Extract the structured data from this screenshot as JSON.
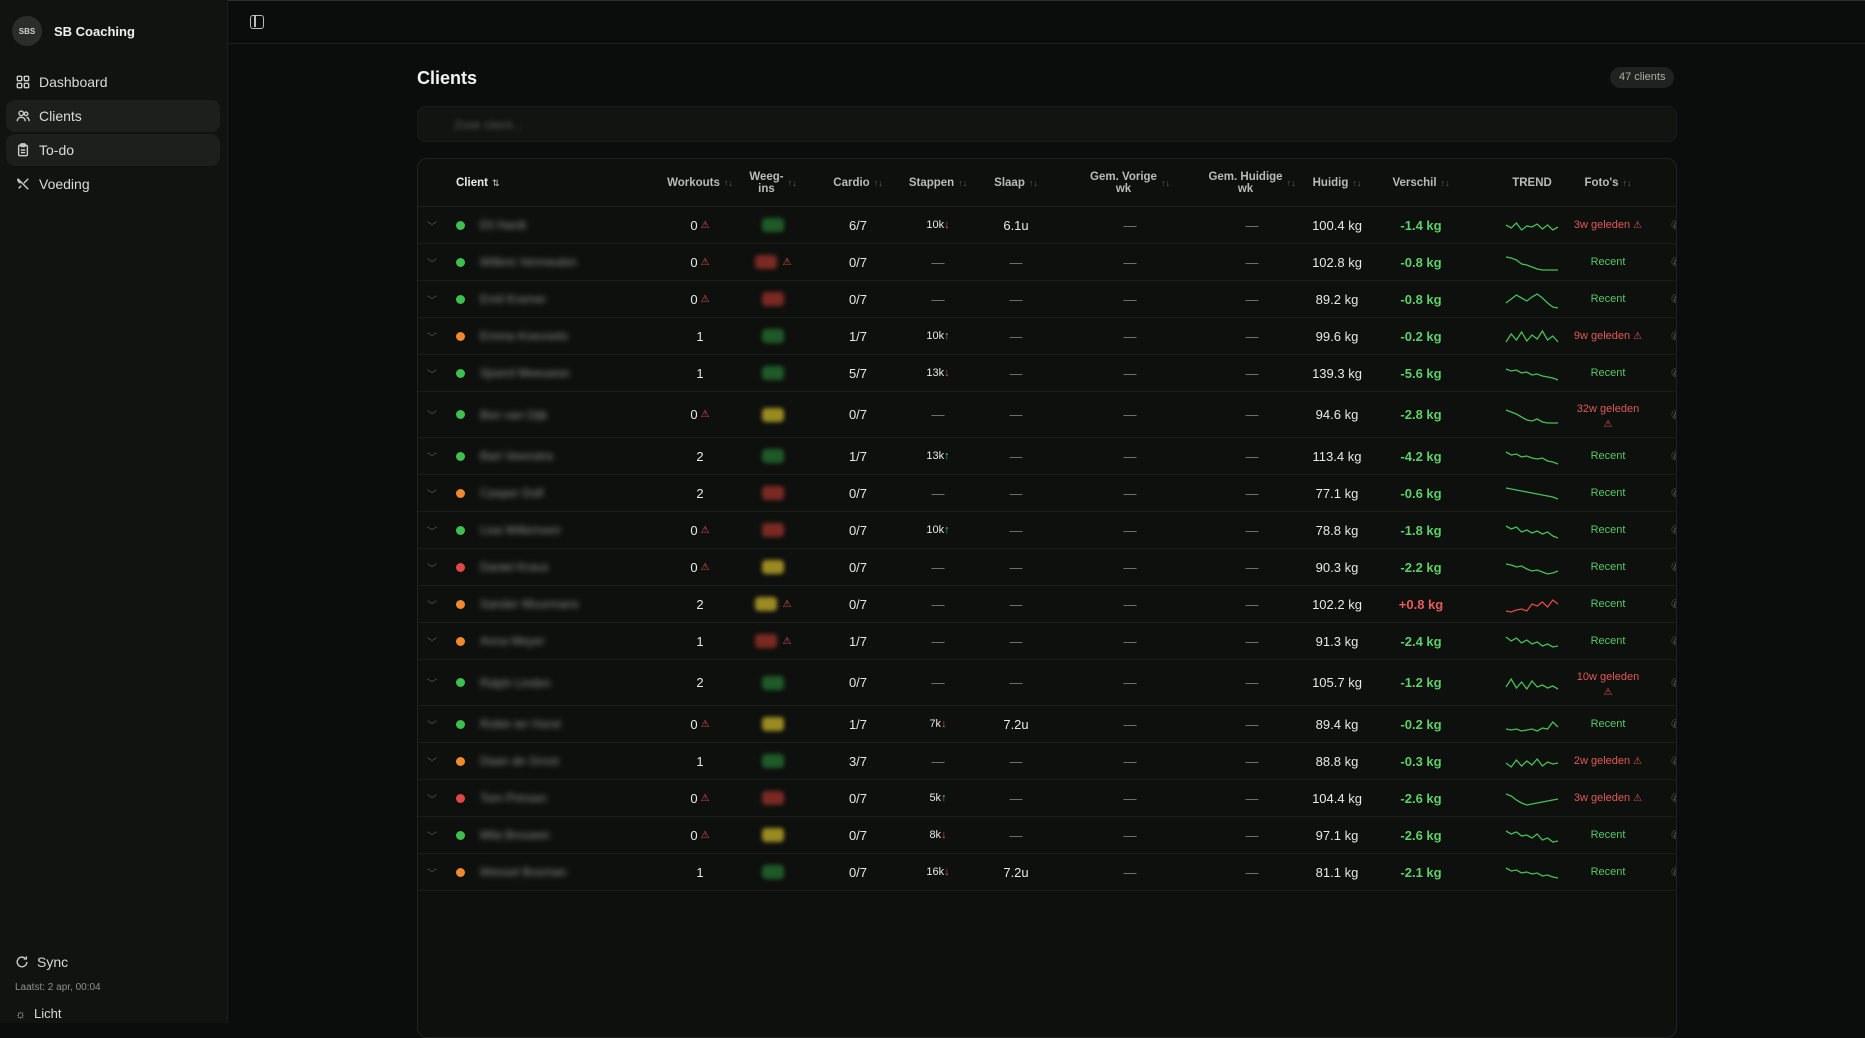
{
  "brand": {
    "logo_text": "SBS",
    "name": "SB Coaching"
  },
  "nav": [
    {
      "label": "Dashboard",
      "icon": "dashboard-icon"
    },
    {
      "label": "Clients",
      "icon": "users-icon"
    },
    {
      "label": "To-do",
      "icon": "clipboard-icon"
    },
    {
      "label": "Voeding",
      "icon": "utensils-icon"
    }
  ],
  "sync": {
    "label": "Sync",
    "last": "Laatst: 2 apr, 00:04"
  },
  "theme": {
    "label": "Licht"
  },
  "page": {
    "title": "Clients",
    "count": "47 clients",
    "search_placeholder": "Zoek client..."
  },
  "columns": {
    "client": "Client",
    "workouts": "Workouts",
    "weegins": "Weeg-\nins",
    "cardio": "Cardio",
    "stappen": "Stappen",
    "slaap": "Slaap",
    "gem_vorige": "Gem. Vorige\nwk",
    "gem_huidige": "Gem. Huidige\nwk",
    "huidig": "Huidig",
    "verschil": "Verschil",
    "trend": "TREND",
    "fotos": "Foto's"
  },
  "colors": {
    "green": "#3fbf4f",
    "orange": "#f08a2c",
    "red": "#e04848",
    "yellow": "#9a8a22",
    "wred": "#7a2a22",
    "wgreen": "#1f5a28"
  },
  "rows": [
    {
      "status": "green",
      "name": "Eli Hardt",
      "workouts": "0",
      "w_warn": true,
      "weeg": "green",
      "weeg_warn": false,
      "cardio": "6/7",
      "steps": "10k",
      "steps_dir": "down",
      "sleep": "6.1u",
      "vorige": "—",
      "huidige": "—",
      "huidig": "100.4 kg",
      "verschil": "-1.4 kg",
      "vs_dir": "neg",
      "trend": [
        10,
        13,
        8,
        15,
        11,
        12,
        9,
        14,
        10,
        15,
        12
      ],
      "trend_color": "green",
      "foto": "3w geleden",
      "foto_warn": true
    },
    {
      "status": "green",
      "name": "Willem Vermeulen",
      "workouts": "0",
      "w_warn": true,
      "weeg": "red",
      "weeg_warn": true,
      "cardio": "0/7",
      "steps": "—",
      "steps_dir": "",
      "sleep": "—",
      "vorige": "—",
      "huidige": "—",
      "huidig": "102.8 kg",
      "verschil": "-0.8 kg",
      "vs_dir": "neg",
      "trend": [
        5,
        6,
        8,
        12,
        13,
        15,
        17,
        18,
        18,
        18,
        18
      ],
      "trend_color": "green",
      "foto": "Recent",
      "foto_warn": false
    },
    {
      "status": "green",
      "name": "Emil Kramer",
      "workouts": "0",
      "w_warn": true,
      "weeg": "red",
      "weeg_warn": false,
      "cardio": "0/7",
      "steps": "—",
      "steps_dir": "",
      "sleep": "—",
      "vorige": "—",
      "huidige": "—",
      "huidig": "89.2 kg",
      "verschil": "-0.8 kg",
      "vs_dir": "neg",
      "trend": [
        14,
        10,
        6,
        9,
        12,
        8,
        5,
        9,
        14,
        18,
        19
      ],
      "trend_color": "green",
      "foto": "Recent",
      "foto_warn": false
    },
    {
      "status": "orange",
      "name": "Emma Koevoets",
      "workouts": "1",
      "w_warn": false,
      "weeg": "green",
      "weeg_warn": false,
      "cardio": "1/7",
      "steps": "10k",
      "steps_dir": "up",
      "sleep": "—",
      "vorige": "—",
      "huidige": "—",
      "huidig": "99.6 kg",
      "verschil": "-0.2 kg",
      "vs_dir": "neg",
      "trend": [
        16,
        8,
        14,
        6,
        15,
        9,
        13,
        5,
        14,
        10,
        16
      ],
      "trend_color": "green",
      "foto": "9w geleden",
      "foto_warn": true
    },
    {
      "status": "green",
      "name": "Sjoerd Meeuwse",
      "workouts": "1",
      "w_warn": false,
      "weeg": "green",
      "weeg_warn": false,
      "cardio": "5/7",
      "steps": "13k",
      "steps_dir": "down",
      "sleep": "—",
      "vorige": "—",
      "huidige": "—",
      "huidig": "139.3 kg",
      "verschil": "-5.6 kg",
      "vs_dir": "neg",
      "trend": [
        6,
        8,
        7,
        10,
        9,
        12,
        11,
        13,
        14,
        15,
        17
      ],
      "trend_color": "green",
      "foto": "Recent",
      "foto_warn": false
    },
    {
      "status": "green",
      "name": "Ben van Dijk",
      "workouts": "0",
      "w_warn": true,
      "weeg": "yellow",
      "weeg_warn": false,
      "cardio": "0/7",
      "steps": "—",
      "steps_dir": "",
      "sleep": "—",
      "vorige": "—",
      "huidige": "—",
      "huidig": "94.6 kg",
      "verschil": "-2.8 kg",
      "vs_dir": "neg",
      "trend": [
        5,
        7,
        9,
        12,
        15,
        16,
        14,
        17,
        18,
        18,
        18
      ],
      "trend_color": "green",
      "foto": "32w geleden",
      "foto_warn": true
    },
    {
      "status": "green",
      "name": "Bart Veenstra",
      "workouts": "2",
      "w_warn": false,
      "weeg": "green",
      "weeg_warn": false,
      "cardio": "1/7",
      "steps": "13k",
      "steps_dir": "up",
      "sleep": "—",
      "vorige": "—",
      "huidige": "—",
      "huidig": "113.4 kg",
      "verschil": "-4.2 kg",
      "vs_dir": "neg",
      "trend": [
        6,
        9,
        8,
        11,
        10,
        12,
        13,
        12,
        15,
        16,
        18
      ],
      "trend_color": "green",
      "foto": "Recent",
      "foto_warn": false
    },
    {
      "status": "orange",
      "name": "Casper Dolf",
      "workouts": "2",
      "w_warn": false,
      "weeg": "red",
      "weeg_warn": false,
      "cardio": "0/7",
      "steps": "—",
      "steps_dir": "",
      "sleep": "—",
      "vorige": "—",
      "huidige": "—",
      "huidig": "77.1 kg",
      "verschil": "-0.6 kg",
      "vs_dir": "neg",
      "trend": [
        5,
        6,
        7,
        8,
        9,
        10,
        11,
        12,
        13,
        14,
        16
      ],
      "trend_color": "green",
      "foto": "Recent",
      "foto_warn": false
    },
    {
      "status": "green",
      "name": "Lisa Willemsen",
      "workouts": "0",
      "w_warn": true,
      "weeg": "red",
      "weeg_warn": false,
      "cardio": "0/7",
      "steps": "10k",
      "steps_dir": "up",
      "sleep": "—",
      "vorige": "—",
      "huidige": "—",
      "huidig": "78.8 kg",
      "verschil": "-1.8 kg",
      "vs_dir": "neg",
      "trend": [
        6,
        9,
        7,
        12,
        10,
        13,
        11,
        14,
        12,
        16,
        18
      ],
      "trend_color": "green",
      "foto": "Recent",
      "foto_warn": false
    },
    {
      "status": "red",
      "name": "Daniel Kraus",
      "workouts": "0",
      "w_warn": true,
      "weeg": "yellow",
      "weeg_warn": false,
      "cardio": "0/7",
      "steps": "—",
      "steps_dir": "",
      "sleep": "—",
      "vorige": "—",
      "huidige": "—",
      "huidig": "90.3 kg",
      "verschil": "-2.2 kg",
      "vs_dir": "neg",
      "trend": [
        7,
        8,
        10,
        9,
        12,
        14,
        13,
        15,
        17,
        16,
        14
      ],
      "trend_color": "green",
      "foto": "Recent",
      "foto_warn": false
    },
    {
      "status": "orange",
      "name": "Sander Mourmans",
      "workouts": "2",
      "w_warn": false,
      "weeg": "yellow",
      "weeg_warn": true,
      "cardio": "0/7",
      "steps": "—",
      "steps_dir": "",
      "sleep": "—",
      "vorige": "—",
      "huidige": "—",
      "huidig": "102.2 kg",
      "verschil": "+0.8 kg",
      "vs_dir": "pos",
      "trend": [
        17,
        18,
        16,
        15,
        17,
        10,
        12,
        8,
        13,
        6,
        10
      ],
      "trend_color": "red",
      "foto": "Recent",
      "foto_warn": false
    },
    {
      "status": "orange",
      "name": "Anna Meyer",
      "workouts": "1",
      "w_warn": false,
      "weeg": "red",
      "weeg_warn": true,
      "cardio": "1/7",
      "steps": "—",
      "steps_dir": "",
      "sleep": "—",
      "vorige": "—",
      "huidige": "—",
      "huidig": "91.3 kg",
      "verschil": "-2.4 kg",
      "vs_dir": "neg",
      "trend": [
        6,
        10,
        7,
        12,
        9,
        13,
        11,
        15,
        13,
        16,
        15
      ],
      "trend_color": "green",
      "foto": "Recent",
      "foto_warn": false
    },
    {
      "status": "green",
      "name": "Ralph Linden",
      "workouts": "2",
      "w_warn": false,
      "weeg": "green",
      "weeg_warn": false,
      "cardio": "0/7",
      "steps": "—",
      "steps_dir": "",
      "sleep": "—",
      "vorige": "—",
      "huidige": "—",
      "huidig": "105.7 kg",
      "verschil": "-1.2 kg",
      "vs_dir": "neg",
      "trend": [
        14,
        6,
        15,
        9,
        16,
        8,
        14,
        12,
        15,
        13,
        16
      ],
      "trend_color": "green",
      "foto": "10w geleden",
      "foto_warn": true
    },
    {
      "status": "green",
      "name": "Robin ter Horst",
      "workouts": "0",
      "w_warn": true,
      "weeg": "yellow",
      "weeg_warn": false,
      "cardio": "1/7",
      "steps": "7k",
      "steps_dir": "down",
      "sleep": "7.2u",
      "vorige": "—",
      "huidige": "—",
      "huidig": "89.4 kg",
      "verschil": "-0.2 kg",
      "vs_dir": "neg",
      "trend": [
        15,
        16,
        15,
        17,
        16,
        15,
        17,
        14,
        15,
        8,
        13
      ],
      "trend_color": "green",
      "foto": "Recent",
      "foto_warn": false
    },
    {
      "status": "orange",
      "name": "Daan de Groot",
      "workouts": "1",
      "w_warn": false,
      "weeg": "green",
      "weeg_warn": false,
      "cardio": "3/7",
      "steps": "—",
      "steps_dir": "",
      "sleep": "—",
      "vorige": "—",
      "huidige": "—",
      "huidig": "88.8 kg",
      "verschil": "-0.3 kg",
      "vs_dir": "neg",
      "trend": [
        12,
        16,
        9,
        15,
        10,
        14,
        8,
        15,
        11,
        13,
        12
      ],
      "trend_color": "green",
      "foto": "2w geleden",
      "foto_warn": true
    },
    {
      "status": "red",
      "name": "Tom Prinsen",
      "workouts": "0",
      "w_warn": true,
      "weeg": "red",
      "weeg_warn": false,
      "cardio": "0/7",
      "steps": "5k",
      "steps_dir": "up",
      "sleep": "—",
      "vorige": "—",
      "huidige": "—",
      "huidig": "104.4 kg",
      "verschil": "-2.6 kg",
      "vs_dir": "neg",
      "trend": [
        6,
        8,
        12,
        15,
        17,
        16,
        15,
        14,
        13,
        12,
        11
      ],
      "trend_color": "green",
      "foto": "3w geleden",
      "foto_warn": true
    },
    {
      "status": "green",
      "name": "Mila Brouwer",
      "workouts": "0",
      "w_warn": true,
      "weeg": "yellow",
      "weeg_warn": false,
      "cardio": "0/7",
      "steps": "8k",
      "steps_dir": "down",
      "sleep": "—",
      "vorige": "—",
      "huidige": "—",
      "huidig": "97.1 kg",
      "verschil": "-2.6 kg",
      "vs_dir": "neg",
      "trend": [
        6,
        9,
        7,
        11,
        10,
        13,
        9,
        15,
        13,
        17,
        16
      ],
      "trend_color": "green",
      "foto": "Recent",
      "foto_warn": false
    },
    {
      "status": "orange",
      "name": "Wessel Bosman",
      "workouts": "1",
      "w_warn": false,
      "weeg": "green",
      "weeg_warn": false,
      "cardio": "0/7",
      "steps": "16k",
      "steps_dir": "down",
      "sleep": "7.2u",
      "vorige": "—",
      "huidige": "—",
      "huidig": "81.1 kg",
      "verschil": "-2.1 kg",
      "vs_dir": "neg",
      "trend": [
        6,
        9,
        8,
        11,
        10,
        12,
        11,
        14,
        13,
        15,
        16
      ],
      "trend_color": "green",
      "foto": "Recent",
      "foto_warn": false
    }
  ]
}
